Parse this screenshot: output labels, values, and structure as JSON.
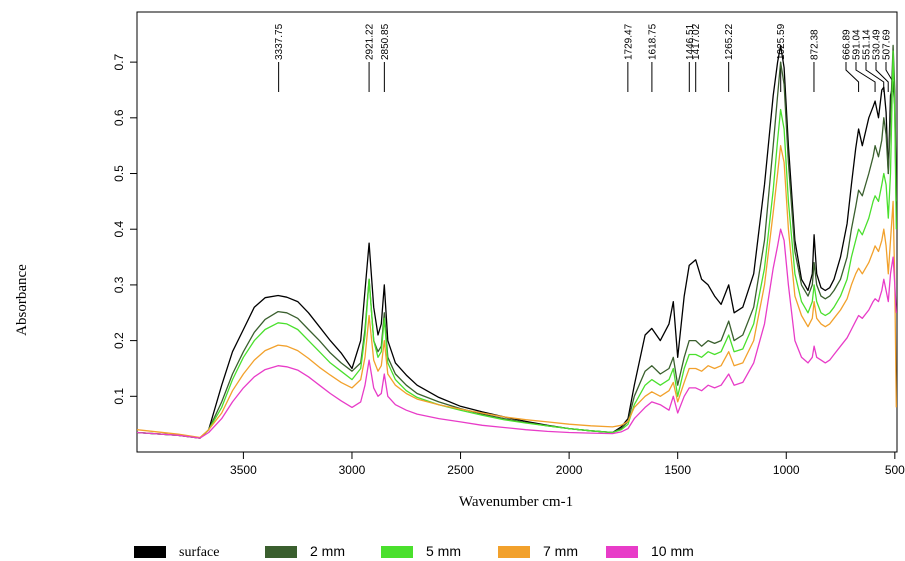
{
  "chart_data": {
    "type": "line",
    "xlabel": "Wavenumber cm-1",
    "ylabel": "Absorbance",
    "xlim": [
      3990,
      490
    ],
    "ylim": [
      0,
      0.79
    ],
    "x_ticks": [
      3500,
      3000,
      2500,
      2000,
      1500,
      1000,
      500
    ],
    "y_ticks": [
      0.1,
      0.2,
      0.3,
      0.4,
      0.5,
      0.6,
      0.7
    ],
    "grid": false,
    "legend_position": "bottom",
    "peak_labels": [
      "3337.75",
      "2921.22",
      "2850.85",
      "1729.47",
      "1618.75",
      "1446.51",
      "1417.02",
      "1265.22",
      "1025.59",
      "872.38",
      "666.89",
      "591.04",
      "551.14",
      "530.49",
      "507.69"
    ],
    "x": [
      3990,
      3800,
      3700,
      3660,
      3600,
      3550,
      3500,
      3450,
      3400,
      3340,
      3300,
      3250,
      3200,
      3150,
      3100,
      3050,
      3000,
      2960,
      2940,
      2921,
      2900,
      2880,
      2865,
      2851,
      2835,
      2800,
      2750,
      2700,
      2600,
      2500,
      2400,
      2300,
      2200,
      2100,
      2000,
      1900,
      1800,
      1760,
      1729,
      1700,
      1650,
      1619,
      1580,
      1540,
      1520,
      1500,
      1470,
      1447,
      1417,
      1390,
      1360,
      1330,
      1300,
      1265,
      1240,
      1200,
      1150,
      1100,
      1060,
      1040,
      1026,
      1010,
      990,
      960,
      930,
      900,
      880,
      872,
      860,
      840,
      820,
      800,
      780,
      750,
      720,
      700,
      680,
      667,
      650,
      620,
      600,
      591,
      575,
      560,
      551,
      540,
      530,
      520,
      508,
      500,
      493
    ],
    "series": [
      {
        "name": "surface",
        "color": "#000000",
        "values": [
          0.035,
          0.03,
          0.025,
          0.04,
          0.12,
          0.18,
          0.22,
          0.26,
          0.277,
          0.281,
          0.278,
          0.27,
          0.25,
          0.225,
          0.2,
          0.178,
          0.15,
          0.2,
          0.29,
          0.375,
          0.26,
          0.21,
          0.23,
          0.3,
          0.2,
          0.16,
          0.138,
          0.12,
          0.098,
          0.082,
          0.072,
          0.063,
          0.055,
          0.048,
          0.042,
          0.038,
          0.035,
          0.045,
          0.06,
          0.12,
          0.21,
          0.222,
          0.2,
          0.23,
          0.27,
          0.17,
          0.28,
          0.335,
          0.345,
          0.31,
          0.3,
          0.28,
          0.265,
          0.3,
          0.25,
          0.26,
          0.32,
          0.48,
          0.64,
          0.7,
          0.73,
          0.69,
          0.55,
          0.38,
          0.31,
          0.29,
          0.32,
          0.39,
          0.32,
          0.295,
          0.29,
          0.295,
          0.31,
          0.35,
          0.41,
          0.48,
          0.545,
          0.58,
          0.55,
          0.6,
          0.62,
          0.63,
          0.6,
          0.65,
          0.655,
          0.61,
          0.5,
          0.64,
          0.66,
          0.62,
          0.43
        ]
      },
      {
        "name": "2 mm",
        "color": "#3a5f2e",
        "values": [
          0.035,
          0.03,
          0.025,
          0.04,
          0.09,
          0.14,
          0.18,
          0.215,
          0.238,
          0.252,
          0.25,
          0.24,
          0.22,
          0.2,
          0.178,
          0.16,
          0.145,
          0.16,
          0.22,
          0.31,
          0.2,
          0.18,
          0.19,
          0.25,
          0.17,
          0.14,
          0.12,
          0.105,
          0.09,
          0.078,
          0.068,
          0.06,
          0.053,
          0.047,
          0.042,
          0.038,
          0.035,
          0.042,
          0.055,
          0.1,
          0.145,
          0.155,
          0.14,
          0.15,
          0.17,
          0.12,
          0.17,
          0.2,
          0.2,
          0.19,
          0.2,
          0.195,
          0.2,
          0.235,
          0.2,
          0.21,
          0.26,
          0.38,
          0.55,
          0.64,
          0.7,
          0.66,
          0.52,
          0.36,
          0.3,
          0.28,
          0.3,
          0.34,
          0.3,
          0.28,
          0.275,
          0.28,
          0.29,
          0.31,
          0.35,
          0.4,
          0.44,
          0.47,
          0.46,
          0.5,
          0.53,
          0.55,
          0.53,
          0.56,
          0.6,
          0.57,
          0.5,
          0.6,
          0.73,
          0.65,
          0.45
        ]
      },
      {
        "name": "5 mm",
        "color": "#4ae02d",
        "values": [
          0.035,
          0.03,
          0.025,
          0.04,
          0.08,
          0.13,
          0.17,
          0.2,
          0.22,
          0.232,
          0.23,
          0.22,
          0.2,
          0.18,
          0.16,
          0.145,
          0.13,
          0.15,
          0.21,
          0.31,
          0.2,
          0.17,
          0.18,
          0.24,
          0.16,
          0.13,
          0.11,
          0.098,
          0.085,
          0.075,
          0.066,
          0.058,
          0.052,
          0.047,
          0.042,
          0.038,
          0.035,
          0.04,
          0.05,
          0.085,
          0.12,
          0.13,
          0.12,
          0.13,
          0.15,
          0.1,
          0.15,
          0.175,
          0.175,
          0.17,
          0.18,
          0.175,
          0.18,
          0.21,
          0.18,
          0.185,
          0.23,
          0.33,
          0.47,
          0.56,
          0.615,
          0.58,
          0.45,
          0.32,
          0.27,
          0.25,
          0.27,
          0.3,
          0.27,
          0.25,
          0.245,
          0.25,
          0.26,
          0.28,
          0.31,
          0.35,
          0.38,
          0.4,
          0.39,
          0.42,
          0.45,
          0.46,
          0.45,
          0.48,
          0.5,
          0.48,
          0.42,
          0.5,
          0.72,
          0.6,
          0.4
        ]
      },
      {
        "name": "7 mm",
        "color": "#f2a12c",
        "values": [
          0.04,
          0.032,
          0.026,
          0.04,
          0.07,
          0.11,
          0.14,
          0.165,
          0.182,
          0.192,
          0.19,
          0.182,
          0.168,
          0.152,
          0.138,
          0.125,
          0.115,
          0.13,
          0.17,
          0.245,
          0.165,
          0.145,
          0.155,
          0.2,
          0.14,
          0.12,
          0.105,
          0.095,
          0.085,
          0.077,
          0.07,
          0.063,
          0.058,
          0.054,
          0.05,
          0.047,
          0.045,
          0.048,
          0.055,
          0.08,
          0.1,
          0.108,
          0.1,
          0.11,
          0.125,
          0.09,
          0.125,
          0.15,
          0.15,
          0.145,
          0.155,
          0.15,
          0.155,
          0.18,
          0.155,
          0.16,
          0.2,
          0.3,
          0.43,
          0.5,
          0.55,
          0.52,
          0.4,
          0.28,
          0.245,
          0.225,
          0.24,
          0.27,
          0.24,
          0.23,
          0.225,
          0.23,
          0.24,
          0.255,
          0.275,
          0.3,
          0.32,
          0.33,
          0.32,
          0.34,
          0.36,
          0.37,
          0.36,
          0.38,
          0.4,
          0.37,
          0.32,
          0.38,
          0.45,
          0.3,
          0.08
        ]
      },
      {
        "name": "10 mm",
        "color": "#e83cc8",
        "values": [
          0.035,
          0.03,
          0.025,
          0.035,
          0.06,
          0.09,
          0.115,
          0.135,
          0.148,
          0.155,
          0.153,
          0.147,
          0.135,
          0.12,
          0.105,
          0.092,
          0.08,
          0.09,
          0.12,
          0.165,
          0.115,
          0.1,
          0.105,
          0.14,
          0.1,
          0.085,
          0.075,
          0.068,
          0.06,
          0.054,
          0.048,
          0.044,
          0.04,
          0.037,
          0.035,
          0.034,
          0.033,
          0.036,
          0.042,
          0.06,
          0.08,
          0.09,
          0.085,
          0.075,
          0.1,
          0.07,
          0.1,
          0.115,
          0.115,
          0.11,
          0.12,
          0.115,
          0.12,
          0.14,
          0.12,
          0.125,
          0.16,
          0.23,
          0.33,
          0.37,
          0.4,
          0.38,
          0.3,
          0.2,
          0.17,
          0.16,
          0.17,
          0.19,
          0.17,
          0.165,
          0.16,
          0.165,
          0.175,
          0.19,
          0.205,
          0.22,
          0.235,
          0.245,
          0.24,
          0.255,
          0.27,
          0.275,
          0.27,
          0.29,
          0.31,
          0.29,
          0.27,
          0.32,
          0.35,
          0.3,
          0.25
        ]
      }
    ]
  }
}
